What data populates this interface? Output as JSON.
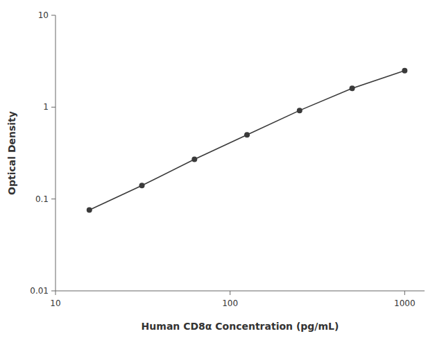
{
  "chart_data": {
    "type": "line",
    "xlabel": "Human CD8α Concentration (pg/mL)",
    "ylabel": "Optical Density",
    "x": [
      15.625,
      31.25,
      62.5,
      125,
      250,
      500,
      1000
    ],
    "values": [
      0.076,
      0.14,
      0.27,
      0.5,
      0.92,
      1.6,
      2.5
    ],
    "color": "#3a3a3a",
    "marker": "circle",
    "xlim": [
      10,
      1300
    ],
    "ylim": [
      0.01,
      10
    ],
    "xticks": [
      10,
      100,
      1000
    ],
    "yticks": [
      0.01,
      0.1,
      1,
      10
    ],
    "log": true,
    "grid": false
  }
}
